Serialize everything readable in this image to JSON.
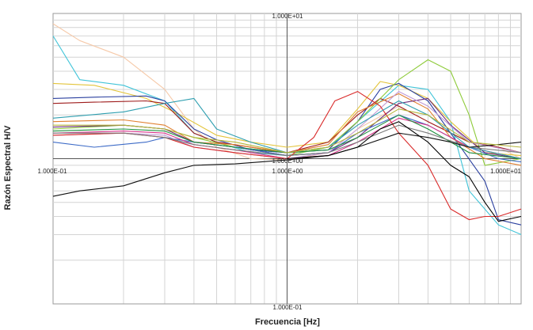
{
  "chart_data": {
    "type": "line",
    "xlabel": "Frecuencia [Hz]",
    "ylabel": "Razón Espectral H/V",
    "xscale": "log",
    "yscale": "log",
    "xlim": [
      0.1,
      10
    ],
    "ylim": [
      0.1,
      10
    ],
    "grid": true,
    "legend": "none",
    "tick_labels": {
      "y_top": "1.000E+01",
      "y_mid": "1.000E+00",
      "y_bottom": "1.000E-01",
      "x_left": "1.000E-01",
      "x_mid": "1.000E+00",
      "x_right": "1.000E+01"
    },
    "series": [
      {
        "color": "#f6c9a8",
        "points": [
          [
            0.1,
            8.5
          ],
          [
            0.13,
            6.5
          ],
          [
            0.2,
            5.0
          ],
          [
            0.3,
            3.0
          ],
          [
            0.4,
            1.6
          ],
          [
            0.5,
            1.2
          ],
          [
            0.7,
            1.0
          ],
          [
            1,
            0.98
          ],
          [
            1.5,
            1.1
          ],
          [
            2,
            1.6
          ],
          [
            3,
            2.3
          ],
          [
            4,
            1.8
          ],
          [
            6,
            1.3
          ],
          [
            8,
            1.2
          ],
          [
            10,
            1.0
          ]
        ]
      },
      {
        "color": "#40c4d8",
        "points": [
          [
            0.1,
            7.0
          ],
          [
            0.13,
            3.5
          ],
          [
            0.2,
            3.2
          ],
          [
            0.3,
            2.5
          ],
          [
            0.4,
            1.5
          ],
          [
            0.5,
            1.3
          ],
          [
            0.7,
            1.1
          ],
          [
            1,
            1.05
          ],
          [
            1.5,
            1.2
          ],
          [
            2,
            1.8
          ],
          [
            3,
            3.2
          ],
          [
            4,
            3.0
          ],
          [
            5,
            1.8
          ],
          [
            6,
            0.6
          ],
          [
            8,
            0.35
          ],
          [
            10,
            0.3
          ]
        ]
      },
      {
        "color": "#e3c43a",
        "points": [
          [
            0.1,
            3.3
          ],
          [
            0.15,
            3.2
          ],
          [
            0.25,
            2.6
          ],
          [
            0.35,
            2.0
          ],
          [
            0.5,
            1.45
          ],
          [
            0.7,
            1.3
          ],
          [
            1,
            1.2
          ],
          [
            1.5,
            1.3
          ],
          [
            2,
            2.2
          ],
          [
            2.5,
            3.4
          ],
          [
            3,
            3.2
          ],
          [
            4,
            2.6
          ],
          [
            5,
            1.8
          ],
          [
            7,
            1.1
          ],
          [
            10,
            1.05
          ]
        ]
      },
      {
        "color": "#2a3f9f",
        "points": [
          [
            0.1,
            2.6
          ],
          [
            0.15,
            2.65
          ],
          [
            0.25,
            2.7
          ],
          [
            0.3,
            2.5
          ],
          [
            0.4,
            1.6
          ],
          [
            0.5,
            1.35
          ],
          [
            0.7,
            1.15
          ],
          [
            1,
            1.1
          ],
          [
            1.5,
            1.15
          ],
          [
            2,
            1.8
          ],
          [
            2.5,
            3.0
          ],
          [
            3,
            3.3
          ],
          [
            4,
            2.5
          ],
          [
            5,
            1.5
          ],
          [
            7,
            0.7
          ],
          [
            8,
            0.38
          ],
          [
            10,
            0.35
          ]
        ]
      },
      {
        "color": "#9e1b1b",
        "points": [
          [
            0.1,
            2.4
          ],
          [
            0.15,
            2.45
          ],
          [
            0.25,
            2.5
          ],
          [
            0.3,
            2.4
          ],
          [
            0.4,
            1.5
          ],
          [
            0.5,
            1.3
          ],
          [
            0.7,
            1.2
          ],
          [
            1,
            1.1
          ],
          [
            1.5,
            1.3
          ],
          [
            2,
            2.0
          ],
          [
            2.5,
            2.6
          ],
          [
            3,
            2.3
          ],
          [
            4,
            1.8
          ],
          [
            6,
            1.3
          ],
          [
            8,
            1.2
          ],
          [
            10,
            1.1
          ]
        ]
      },
      {
        "color": "#8ecb3a",
        "points": [
          [
            0.1,
            1.6
          ],
          [
            0.2,
            1.7
          ],
          [
            0.3,
            1.6
          ],
          [
            0.4,
            1.4
          ],
          [
            0.6,
            1.2
          ],
          [
            1,
            1.05
          ],
          [
            1.5,
            1.2
          ],
          [
            2,
            1.8
          ],
          [
            3,
            3.5
          ],
          [
            4,
            4.8
          ],
          [
            5,
            4.0
          ],
          [
            6,
            2.0
          ],
          [
            7,
            0.9
          ],
          [
            10,
            1.0
          ]
        ]
      },
      {
        "color": "#e07f2f",
        "points": [
          [
            0.1,
            1.8
          ],
          [
            0.2,
            1.85
          ],
          [
            0.3,
            1.7
          ],
          [
            0.4,
            1.3
          ],
          [
            0.6,
            1.25
          ],
          [
            1,
            1.1
          ],
          [
            1.5,
            1.25
          ],
          [
            2,
            2.1
          ],
          [
            3,
            2.8
          ],
          [
            4,
            2.2
          ],
          [
            5,
            1.4
          ],
          [
            7,
            1.0
          ],
          [
            10,
            0.9
          ]
        ]
      },
      {
        "color": "#6b2b7a",
        "points": [
          [
            0.1,
            1.65
          ],
          [
            0.2,
            1.7
          ],
          [
            0.3,
            1.6
          ],
          [
            0.4,
            1.3
          ],
          [
            0.6,
            1.2
          ],
          [
            1,
            1.05
          ],
          [
            1.5,
            1.1
          ],
          [
            2,
            1.4
          ],
          [
            3,
            2.4
          ],
          [
            4,
            2.6
          ],
          [
            5,
            1.7
          ],
          [
            7,
            1.1
          ],
          [
            10,
            1.0
          ]
        ]
      },
      {
        "color": "#3d6bc7",
        "points": [
          [
            0.1,
            1.3
          ],
          [
            0.15,
            1.2
          ],
          [
            0.25,
            1.3
          ],
          [
            0.3,
            1.4
          ],
          [
            0.4,
            1.3
          ],
          [
            0.6,
            1.2
          ],
          [
            1,
            1.05
          ],
          [
            1.5,
            1.1
          ],
          [
            2,
            1.5
          ],
          [
            3,
            2.0
          ],
          [
            4,
            1.7
          ],
          [
            6,
            1.2
          ],
          [
            8,
            1.0
          ],
          [
            10,
            0.95
          ]
        ]
      },
      {
        "color": "#d6338a",
        "points": [
          [
            0.1,
            1.5
          ],
          [
            0.2,
            1.55
          ],
          [
            0.3,
            1.5
          ],
          [
            0.4,
            1.25
          ],
          [
            0.6,
            1.15
          ],
          [
            1,
            1.0
          ],
          [
            1.5,
            1.05
          ],
          [
            2,
            1.3
          ],
          [
            3,
            1.9
          ],
          [
            4,
            1.7
          ],
          [
            6,
            1.2
          ],
          [
            10,
            1.0
          ]
        ]
      },
      {
        "color": "#c09ad6",
        "points": [
          [
            0.1,
            1.45
          ],
          [
            0.2,
            1.5
          ],
          [
            0.3,
            1.45
          ],
          [
            0.4,
            1.2
          ],
          [
            0.6,
            1.1
          ],
          [
            1,
            1.0
          ],
          [
            1.5,
            1.1
          ],
          [
            2,
            1.6
          ],
          [
            3,
            2.9
          ],
          [
            4,
            2.3
          ],
          [
            6,
            1.3
          ],
          [
            10,
            1.1
          ]
        ]
      },
      {
        "color": "#1e8f3e",
        "points": [
          [
            0.1,
            1.55
          ],
          [
            0.2,
            1.6
          ],
          [
            0.3,
            1.55
          ],
          [
            0.4,
            1.3
          ],
          [
            0.6,
            1.2
          ],
          [
            1,
            1.1
          ],
          [
            1.5,
            1.15
          ],
          [
            2,
            1.4
          ],
          [
            3,
            2.0
          ],
          [
            4,
            1.6
          ],
          [
            6,
            1.1
          ],
          [
            10,
            1.0
          ]
        ]
      },
      {
        "color": "#d92a2a",
        "points": [
          [
            0.1,
            1.45
          ],
          [
            0.2,
            1.5
          ],
          [
            0.3,
            1.4
          ],
          [
            0.4,
            1.2
          ],
          [
            0.6,
            1.1
          ],
          [
            1,
            1.0
          ],
          [
            1.3,
            1.4
          ],
          [
            1.6,
            2.5
          ],
          [
            2,
            2.9
          ],
          [
            2.5,
            2.3
          ],
          [
            3,
            1.5
          ],
          [
            4,
            0.9
          ],
          [
            5,
            0.45
          ],
          [
            6,
            0.38
          ],
          [
            7,
            0.4
          ],
          [
            8,
            0.4
          ],
          [
            10,
            0.45
          ]
        ]
      },
      {
        "color": "#7a7a7a",
        "points": [
          [
            0.1,
            1.5
          ],
          [
            0.2,
            1.5
          ],
          [
            0.3,
            1.4
          ],
          [
            0.4,
            1.25
          ],
          [
            0.6,
            1.15
          ],
          [
            1,
            1.05
          ],
          [
            1.5,
            1.1
          ],
          [
            2,
            1.3
          ],
          [
            3,
            1.7
          ],
          [
            4,
            1.5
          ],
          [
            6,
            1.2
          ],
          [
            10,
            1.1
          ]
        ]
      },
      {
        "color": "#2f9fb0",
        "points": [
          [
            0.1,
            1.9
          ],
          [
            0.2,
            2.1
          ],
          [
            0.3,
            2.4
          ],
          [
            0.4,
            2.6
          ],
          [
            0.5,
            1.6
          ],
          [
            0.7,
            1.3
          ],
          [
            1,
            1.1
          ],
          [
            1.5,
            1.2
          ],
          [
            2,
            1.7
          ],
          [
            3,
            2.5
          ],
          [
            4,
            2.0
          ],
          [
            6,
            1.2
          ],
          [
            10,
            1.0
          ]
        ]
      },
      {
        "color": "#111111",
        "points": [
          [
            0.1,
            0.55
          ],
          [
            0.13,
            0.6
          ],
          [
            0.2,
            0.65
          ],
          [
            0.3,
            0.8
          ],
          [
            0.4,
            0.9
          ],
          [
            0.6,
            0.92
          ],
          [
            1,
            0.98
          ],
          [
            1.5,
            1.05
          ],
          [
            2,
            1.2
          ],
          [
            3,
            1.5
          ],
          [
            4,
            1.4
          ],
          [
            5,
            1.3
          ],
          [
            6,
            1.2
          ],
          [
            8,
            1.25
          ],
          [
            10,
            1.3
          ]
        ]
      },
      {
        "color": "#000000",
        "points": [
          [
            1,
            1.0
          ],
          [
            1.5,
            1.05
          ],
          [
            2,
            1.2
          ],
          [
            2.5,
            1.6
          ],
          [
            3,
            1.8
          ],
          [
            4,
            1.3
          ],
          [
            5,
            0.9
          ],
          [
            6,
            0.75
          ],
          [
            7,
            0.5
          ],
          [
            8,
            0.37
          ],
          [
            10,
            0.4
          ]
        ]
      },
      {
        "color": "#b5b53a",
        "points": [
          [
            0.1,
            1.7
          ],
          [
            0.2,
            1.7
          ],
          [
            0.3,
            1.6
          ],
          [
            0.4,
            1.4
          ],
          [
            0.6,
            1.3
          ],
          [
            1,
            1.1
          ],
          [
            1.5,
            1.2
          ],
          [
            2,
            1.5
          ],
          [
            3,
            2.2
          ],
          [
            4,
            2.0
          ],
          [
            6,
            1.3
          ],
          [
            10,
            1.2
          ]
        ]
      }
    ]
  }
}
